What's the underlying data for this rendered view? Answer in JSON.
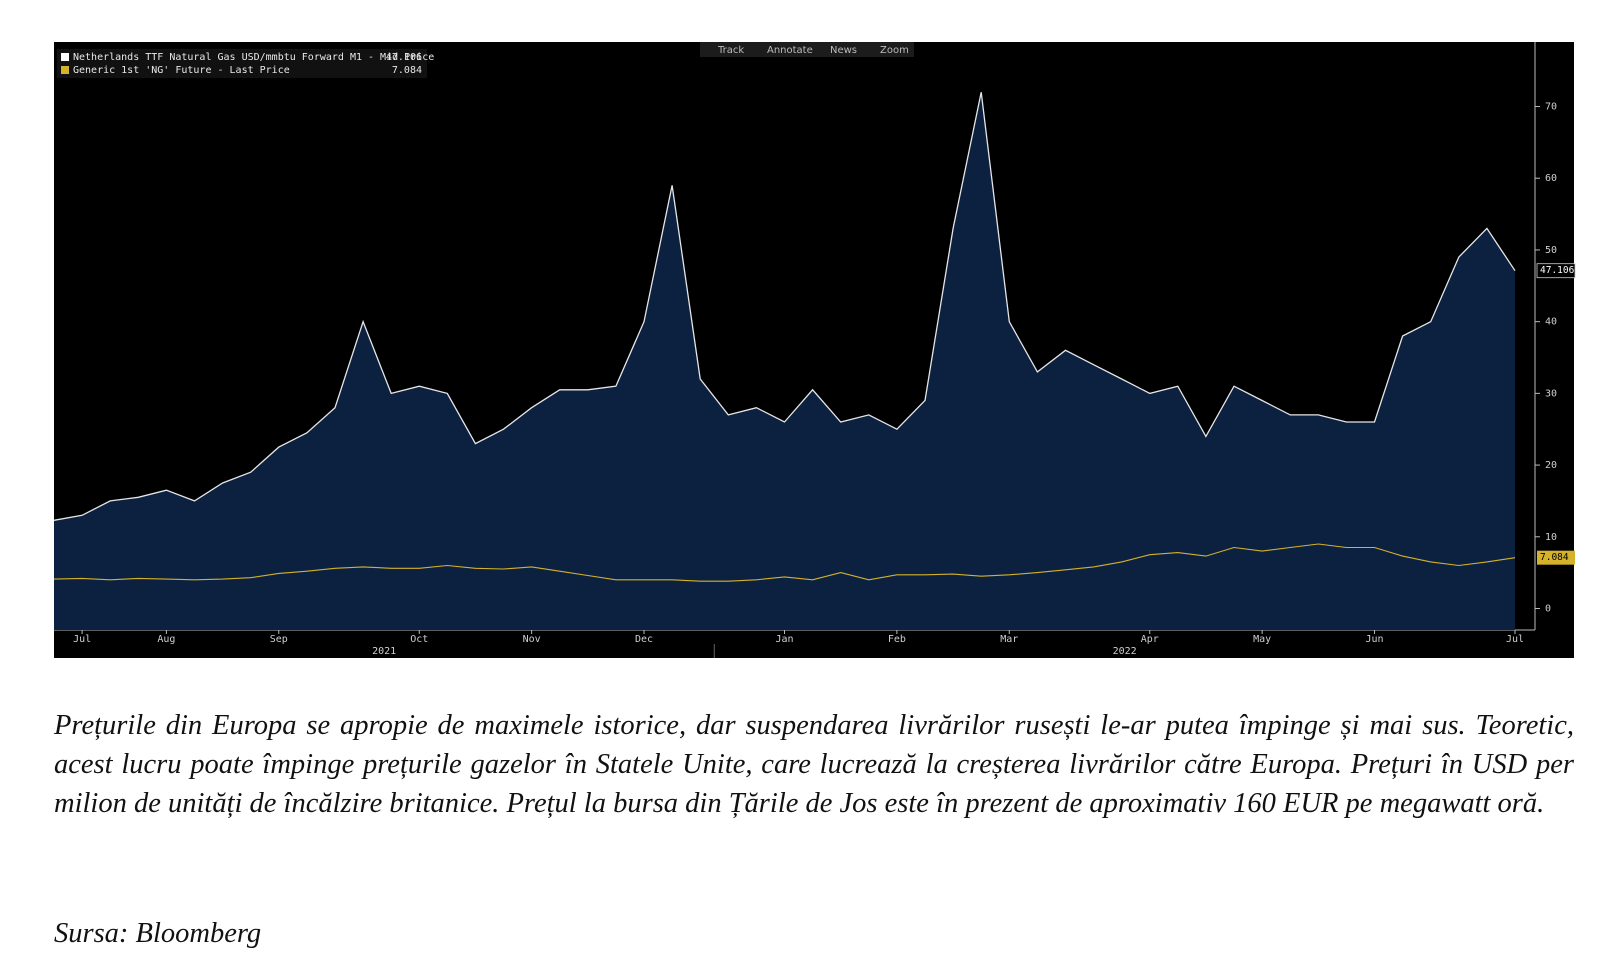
{
  "chart_data": {
    "type": "area-line",
    "toolbar": [
      "Track",
      "Annotate",
      "News",
      "Zoom"
    ],
    "categories": [
      null,
      "Jul",
      null,
      null,
      "Aug",
      null,
      null,
      null,
      "Sep",
      null,
      null,
      null,
      null,
      "Oct",
      null,
      null,
      null,
      "Nov",
      null,
      null,
      null,
      "Dec",
      null,
      null,
      null,
      null,
      "Jan",
      null,
      null,
      null,
      "Feb",
      null,
      null,
      null,
      "Mar",
      null,
      null,
      null,
      null,
      "Apr",
      null,
      null,
      null,
      "May",
      null,
      null,
      null,
      "Jun",
      null,
      null,
      null,
      null,
      "Jul"
    ],
    "years": [
      "2021",
      "2022"
    ],
    "series": [
      {
        "name": "Netherlands TTF Natural Gas USD/mmbtu Forward M1 - Mid Price",
        "color": "#e6e6e6",
        "fill": "#0c2140",
        "values": [
          12.3,
          13,
          15,
          15.5,
          16.5,
          15,
          17.5,
          19,
          22.5,
          24.5,
          28,
          40,
          30,
          31,
          30,
          23,
          25,
          28,
          30.5,
          30.5,
          31,
          40,
          59,
          32,
          27,
          28,
          26,
          30.5,
          26,
          27,
          25,
          29,
          53,
          72,
          40,
          33,
          36,
          34,
          32,
          30,
          31,
          24,
          31,
          29,
          27,
          27,
          26,
          26,
          38,
          40,
          49,
          53,
          47.106
        ]
      },
      {
        "name": "Generic 1st 'NG' Future - Last Price",
        "color": "#d4b22c",
        "values": [
          4.1,
          4.2,
          4.0,
          4.2,
          4.1,
          4.0,
          4.1,
          4.3,
          4.9,
          5.2,
          5.6,
          5.8,
          5.6,
          5.6,
          6.0,
          5.6,
          5.5,
          5.8,
          5.2,
          4.6,
          4.0,
          4.0,
          4.0,
          3.8,
          3.8,
          4.0,
          4.4,
          4.0,
          5.0,
          4.0,
          4.7,
          4.7,
          4.8,
          4.5,
          4.7,
          5.0,
          5.4,
          5.8,
          6.5,
          7.5,
          7.8,
          7.3,
          8.5,
          8.0,
          8.5,
          9.0,
          8.5,
          8.5,
          7.3,
          6.5,
          6.0,
          6.5,
          7.084
        ]
      }
    ],
    "ylim": [
      -3,
      79
    ],
    "yticks": [
      0,
      10,
      20,
      30,
      40,
      50,
      60,
      70
    ]
  },
  "caption": "Prețurile din Europa se apropie de maximele istorice, dar suspendarea livrărilor rusești le-ar putea împinge și mai sus. Teoretic, acest lucru poate împinge prețurile gazelor în Statele Unite, care lucrează la creșterea livrărilor către Europa. Prețuri în USD per milion de unități de încălzire britanice. Prețul la bursa din Țările de Jos este în prezent de aproximativ 160 EUR  pe megawatt oră.",
  "source": "Sursa: Bloomberg"
}
